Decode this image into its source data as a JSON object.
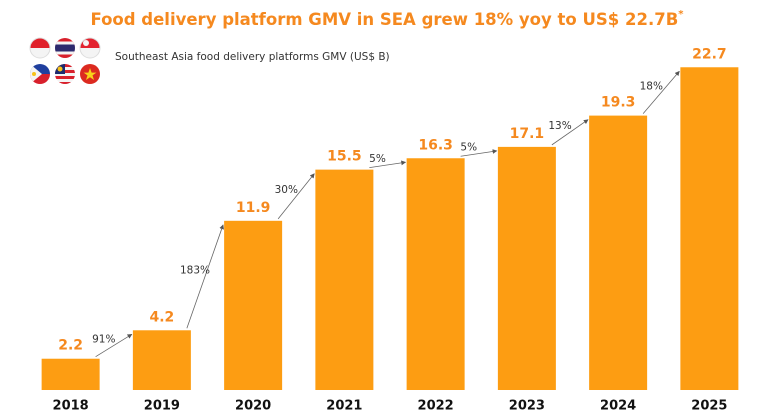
{
  "chart_data": {
    "type": "bar",
    "title": "Food delivery platform GMV in SEA grew 18% yoy to US$ 22.7B",
    "title_marker": "*",
    "subtitle": "Southeast Asia food delivery platforms GMV (US$ B)",
    "categories": [
      "2018",
      "2019",
      "2020",
      "2021",
      "2022",
      "2023",
      "2024",
      "2025"
    ],
    "values": [
      2.2,
      4.2,
      11.9,
      15.5,
      16.3,
      17.1,
      19.3,
      22.7
    ],
    "color": "#fd9d12",
    "label_color": "#f5891f",
    "ylim": [
      0,
      23
    ],
    "growth": {
      "values": [
        91,
        183,
        30,
        5,
        5,
        13,
        18
      ],
      "value_labels": [
        "91%",
        "183%",
        "30%",
        "5%",
        "5%",
        "13%",
        "18%"
      ]
    }
  }
}
